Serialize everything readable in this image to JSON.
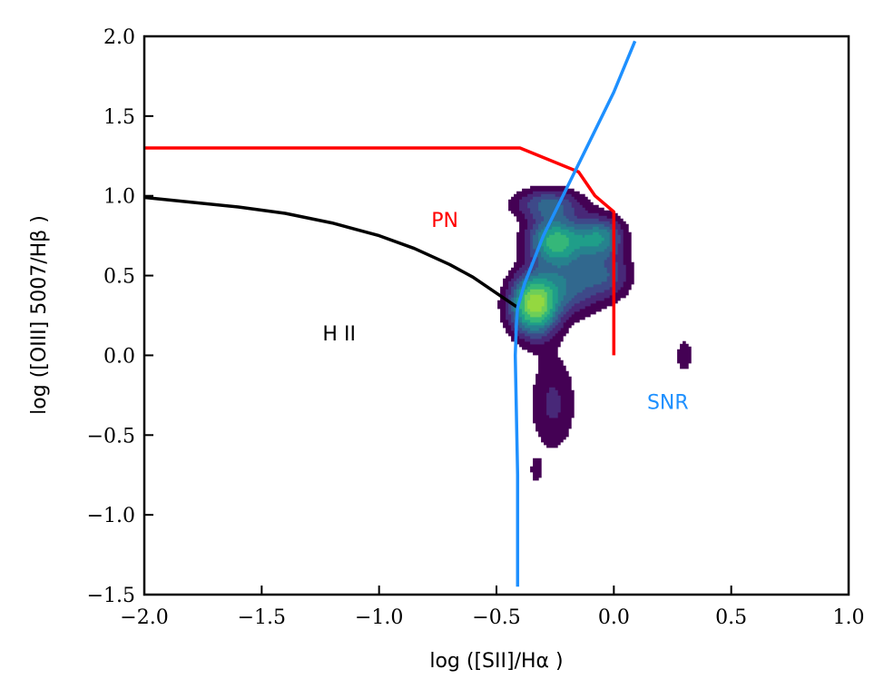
{
  "chart_data": {
    "type": "line",
    "xlabel": "log ([SII]/Hα )",
    "ylabel": "log ([OIII] 5007/Hβ )",
    "xlim": [
      -2.0,
      1.0
    ],
    "ylim": [
      -1.5,
      2.0
    ],
    "xticks": [
      -2.0,
      -1.5,
      -1.0,
      -0.5,
      0.0,
      0.5,
      1.0
    ],
    "yticks": [
      -1.5,
      -1.0,
      -0.5,
      0.0,
      0.5,
      1.0,
      1.5,
      2.0
    ],
    "xtick_labels": [
      "−2.0",
      "−1.5",
      "−1.0",
      "−0.5",
      "0.0",
      "0.5",
      "1.0"
    ],
    "ytick_labels": [
      "−1.5",
      "−1.0",
      "−0.5",
      "0.0",
      "0.5",
      "1.0",
      "1.5",
      "2.0"
    ],
    "grid": false,
    "series": [
      {
        "color": "#000000",
        "x": [
          -2.0,
          -1.8,
          -1.6,
          -1.4,
          -1.2,
          -1.0,
          -0.85,
          -0.7,
          -0.6,
          -0.5,
          -0.41
        ],
        "y": [
          0.99,
          0.96,
          0.93,
          0.89,
          0.83,
          0.75,
          0.67,
          0.57,
          0.49,
          0.39,
          0.3
        ]
      },
      {
        "color": "#ff0000",
        "x": [
          -2.0,
          -0.4,
          -0.15,
          -0.08,
          0.0,
          0.0
        ],
        "y": [
          1.3,
          1.3,
          1.15,
          1.0,
          0.9,
          0.0
        ]
      },
      {
        "color": "#1e90ff",
        "x": [
          -0.41,
          -0.41,
          -0.42,
          -0.415,
          -0.41,
          -0.38,
          -0.3,
          -0.2,
          -0.1,
          0.0,
          0.09
        ],
        "y": [
          -1.45,
          -0.75,
          0.0,
          0.2,
          0.3,
          0.45,
          0.75,
          1.05,
          1.35,
          1.65,
          1.97
        ]
      }
    ],
    "annotations": [
      {
        "text": "PN",
        "x": -0.72,
        "y": 0.85,
        "color": "#ff0000"
      },
      {
        "text": "H II",
        "x": -1.17,
        "y": 0.14,
        "color": "#000000"
      },
      {
        "text": "SNR",
        "x": 0.23,
        "y": -0.29,
        "color": "#1e90ff"
      }
    ],
    "density": {
      "colormap": "viridis",
      "blobs": [
        {
          "x": -0.34,
          "y": 0.32,
          "sx": 0.07,
          "sy": 0.13,
          "w": 1.0
        },
        {
          "x": -0.25,
          "y": 0.72,
          "sx": 0.08,
          "sy": 0.1,
          "w": 0.75
        },
        {
          "x": -0.06,
          "y": 0.74,
          "sx": 0.07,
          "sy": 0.09,
          "w": 0.55
        },
        {
          "x": -0.18,
          "y": 0.45,
          "sx": 0.09,
          "sy": 0.13,
          "w": 0.4
        },
        {
          "x": -0.28,
          "y": 0.95,
          "sx": 0.1,
          "sy": 0.07,
          "w": 0.4
        },
        {
          "x": -0.02,
          "y": 0.5,
          "sx": 0.07,
          "sy": 0.1,
          "w": 0.3
        },
        {
          "x": -0.26,
          "y": -0.3,
          "sx": 0.07,
          "sy": 0.22,
          "w": 0.22
        },
        {
          "x": -0.33,
          "y": -0.72,
          "sx": 0.02,
          "sy": 0.06,
          "w": 0.15
        },
        {
          "x": 0.3,
          "y": 0.0,
          "sx": 0.025,
          "sy": 0.07,
          "w": 0.2
        }
      ]
    }
  }
}
